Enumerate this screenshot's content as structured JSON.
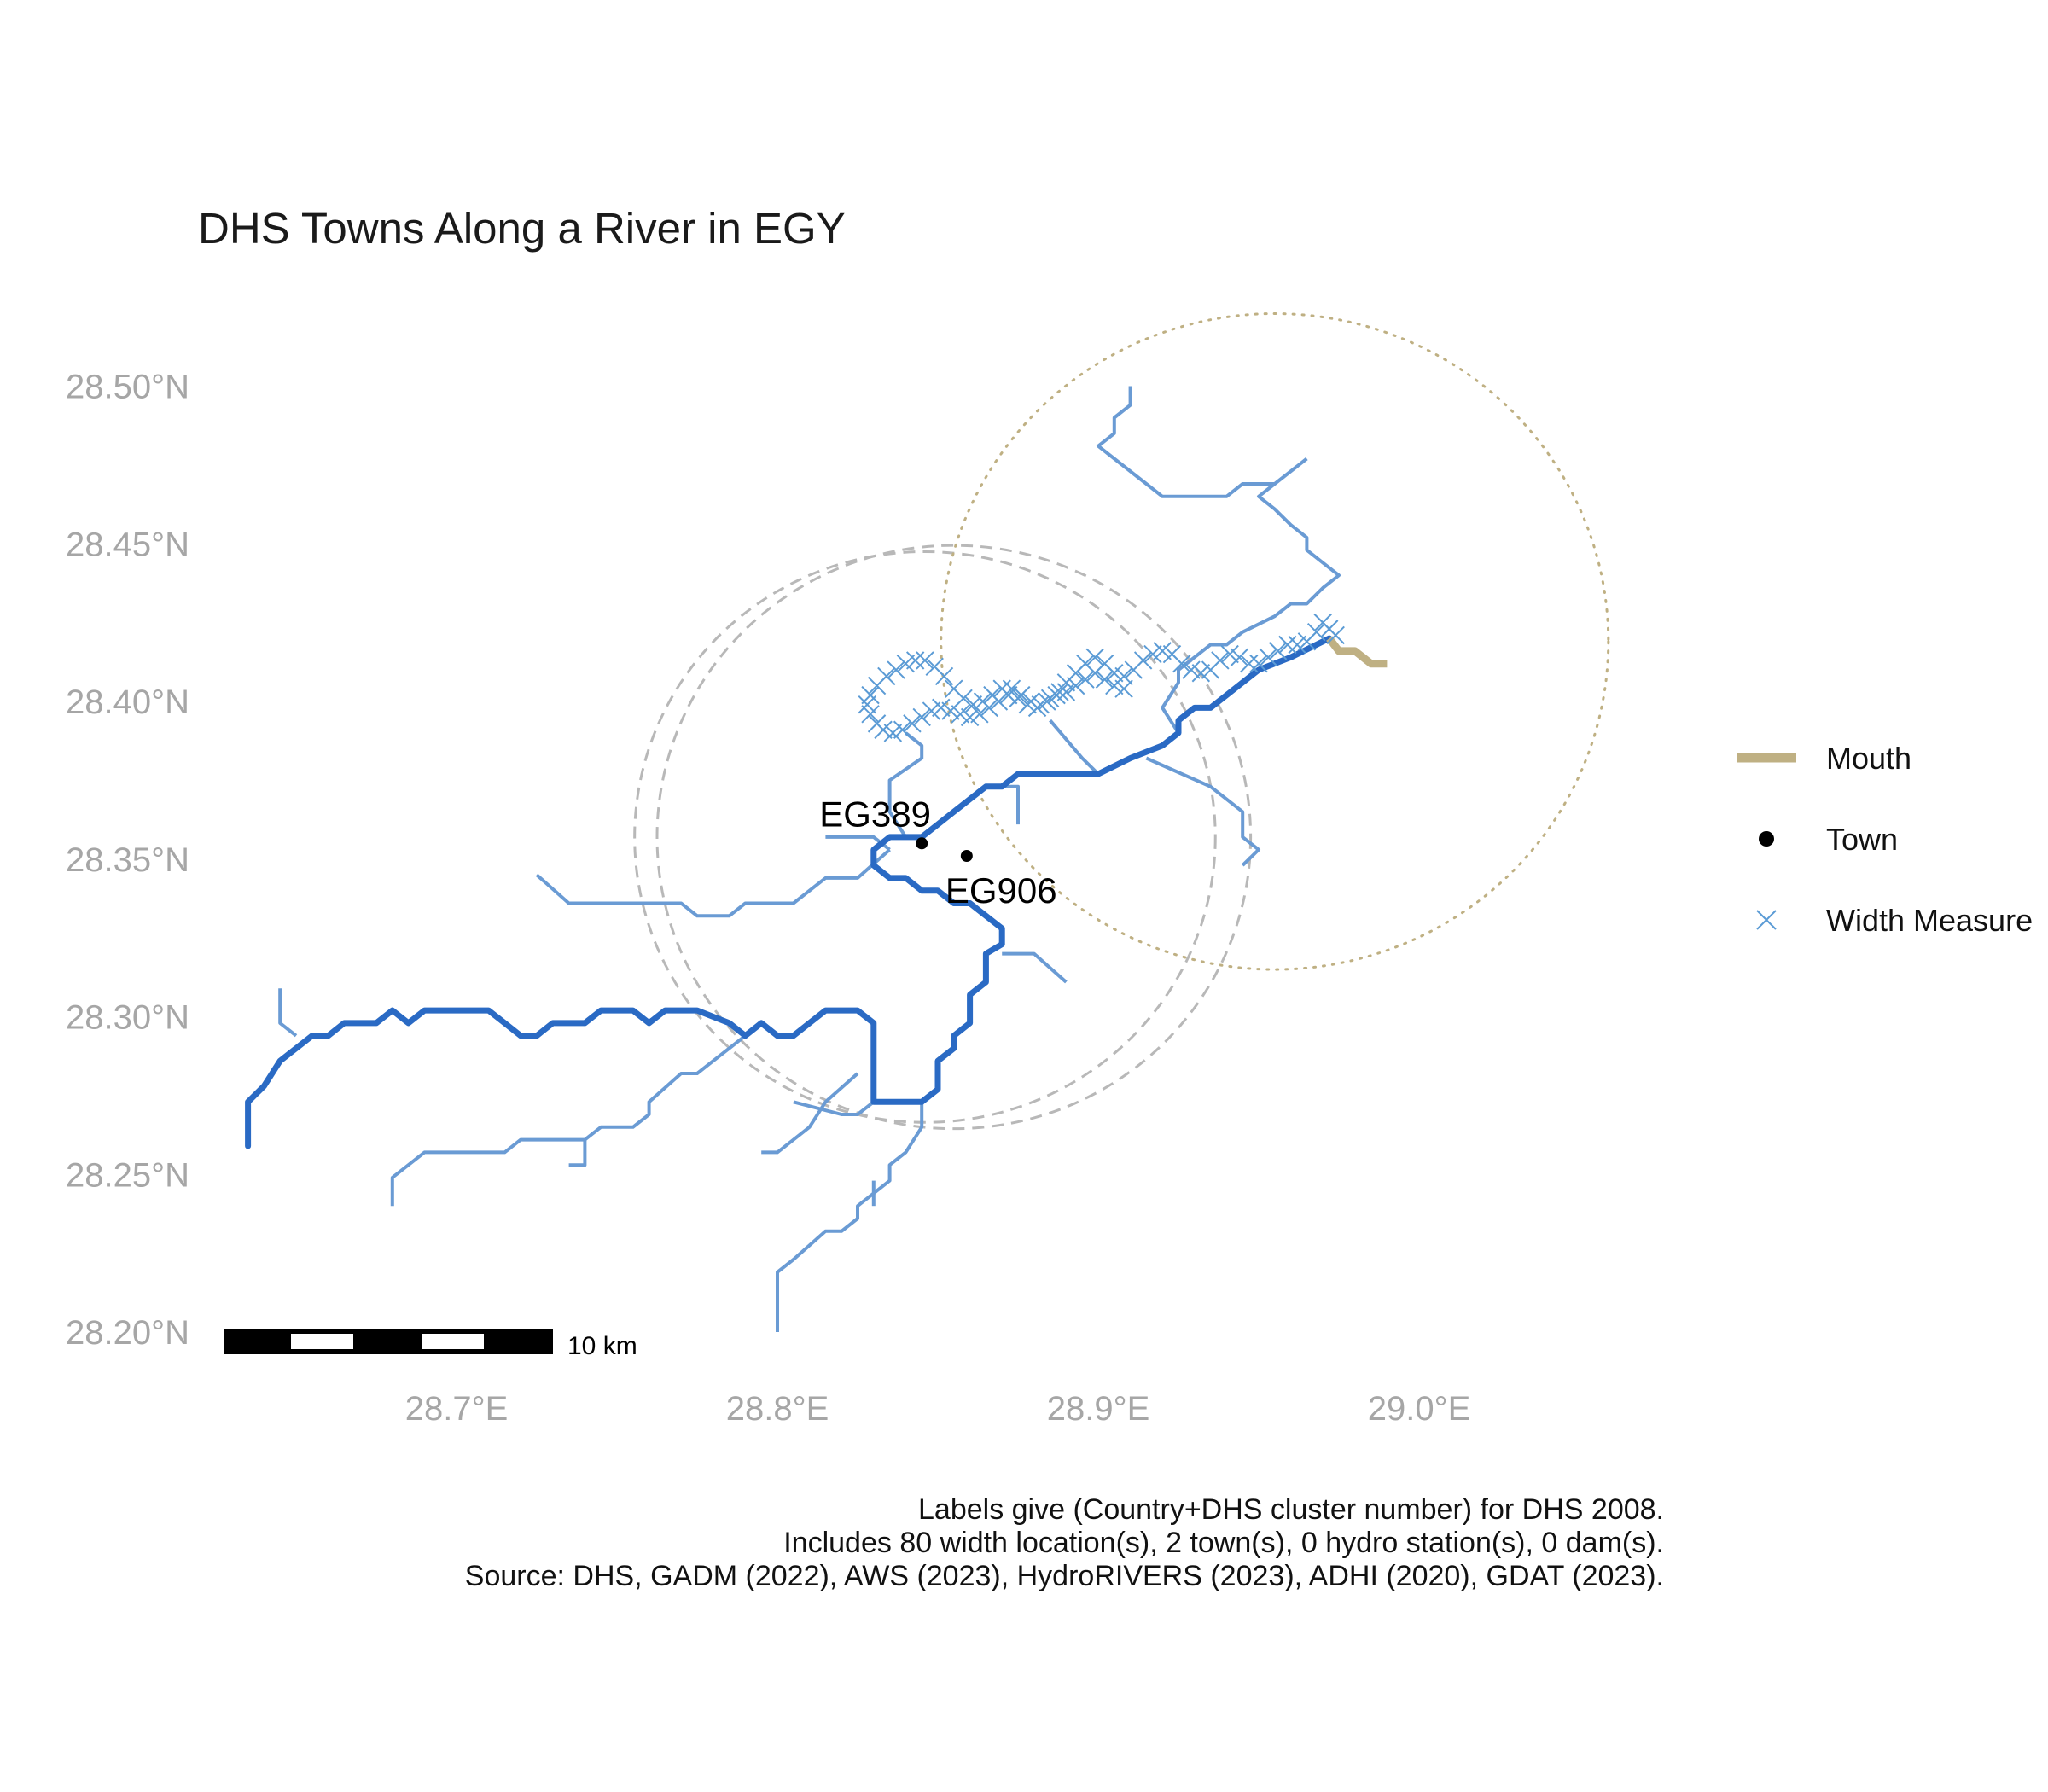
{
  "title": "DHS Towns Along a River in EGY",
  "chart_data": {
    "type": "map",
    "x_ticks": [
      {
        "value": 28.7,
        "label": "28.7°E"
      },
      {
        "value": 28.8,
        "label": "28.8°E"
      },
      {
        "value": 28.9,
        "label": "28.9°E"
      },
      {
        "value": 29.0,
        "label": "29.0°E"
      }
    ],
    "y_ticks": [
      {
        "value": 28.2,
        "label": "28.20°N"
      },
      {
        "value": 28.25,
        "label": "28.25°N"
      },
      {
        "value": 28.3,
        "label": "28.30°N"
      },
      {
        "value": 28.35,
        "label": "28.35°N"
      },
      {
        "value": 28.4,
        "label": "28.40°N"
      },
      {
        "value": 28.45,
        "label": "28.45°N"
      },
      {
        "value": 28.5,
        "label": "28.50°N"
      }
    ],
    "towns": [
      {
        "label": "EG389",
        "lon": 28.845,
        "lat": 28.355
      },
      {
        "label": "EG906",
        "lon": 28.859,
        "lat": 28.351
      }
    ],
    "buffers": [
      {
        "type": "dashed",
        "lon": 28.855,
        "lat": 28.357,
        "radius_deg": 0.0925
      },
      {
        "type": "dashed",
        "lon": 28.846,
        "lat": 28.357,
        "radius_deg": 0.0905
      },
      {
        "type": "dotted",
        "lon": 28.955,
        "lat": 28.419,
        "radius_deg": 0.104
      }
    ],
    "main_river": [
      [
        28.635,
        28.259
      ],
      [
        28.635,
        28.273
      ],
      [
        28.64,
        28.278
      ],
      [
        28.645,
        28.286
      ],
      [
        28.65,
        28.29
      ],
      [
        28.655,
        28.294
      ],
      [
        28.66,
        28.294
      ],
      [
        28.665,
        28.298
      ],
      [
        28.675,
        28.298
      ],
      [
        28.68,
        28.302
      ],
      [
        28.685,
        28.298
      ],
      [
        28.69,
        28.302
      ],
      [
        28.7,
        28.302
      ],
      [
        28.71,
        28.302
      ],
      [
        28.715,
        28.298
      ],
      [
        28.72,
        28.294
      ],
      [
        28.725,
        28.294
      ],
      [
        28.73,
        28.298
      ],
      [
        28.74,
        28.298
      ],
      [
        28.745,
        28.302
      ],
      [
        28.755,
        28.302
      ],
      [
        28.76,
        28.298
      ],
      [
        28.765,
        28.302
      ],
      [
        28.775,
        28.302
      ],
      [
        28.785,
        28.298
      ],
      [
        28.79,
        28.294
      ],
      [
        28.795,
        28.298
      ],
      [
        28.8,
        28.294
      ],
      [
        28.805,
        28.294
      ],
      [
        28.81,
        28.298
      ],
      [
        28.815,
        28.302
      ],
      [
        28.82,
        28.302
      ],
      [
        28.825,
        28.302
      ],
      [
        28.83,
        28.298
      ],
      [
        28.83,
        28.286
      ],
      [
        28.83,
        28.273
      ],
      [
        28.845,
        28.273
      ],
      [
        28.85,
        28.277
      ],
      [
        28.85,
        28.286
      ],
      [
        28.855,
        28.29
      ],
      [
        28.855,
        28.294
      ],
      [
        28.86,
        28.298
      ],
      [
        28.86,
        28.307
      ],
      [
        28.865,
        28.311
      ],
      [
        28.865,
        28.32
      ],
      [
        28.87,
        28.323
      ],
      [
        28.87,
        28.328
      ],
      [
        28.865,
        28.332
      ],
      [
        28.86,
        28.336
      ],
      [
        28.855,
        28.336
      ],
      [
        28.85,
        28.34
      ],
      [
        28.845,
        28.34
      ],
      [
        28.84,
        28.344
      ],
      [
        28.835,
        28.344
      ],
      [
        28.83,
        28.348
      ],
      [
        28.83,
        28.353
      ],
      [
        28.835,
        28.357
      ],
      [
        28.845,
        28.357
      ],
      [
        28.85,
        28.361
      ],
      [
        28.855,
        28.365
      ],
      [
        28.86,
        28.369
      ],
      [
        28.865,
        28.373
      ],
      [
        28.87,
        28.373
      ],
      [
        28.875,
        28.377
      ],
      [
        28.9,
        28.377
      ],
      [
        28.91,
        28.382
      ],
      [
        28.92,
        28.386
      ],
      [
        28.925,
        28.39
      ],
      [
        28.925,
        28.394
      ],
      [
        28.93,
        28.398
      ],
      [
        28.935,
        28.398
      ],
      [
        28.94,
        28.402
      ],
      [
        28.945,
        28.406
      ],
      [
        28.95,
        28.41
      ],
      [
        28.96,
        28.414
      ],
      [
        28.972,
        28.42
      ]
    ],
    "mouth_segment": [
      [
        28.972,
        28.42
      ],
      [
        28.975,
        28.416
      ],
      [
        28.98,
        28.416
      ],
      [
        28.985,
        28.412
      ],
      [
        28.99,
        28.412
      ]
    ],
    "tributaries": [
      [
        [
          28.725,
          28.345
        ],
        [
          28.735,
          28.336
        ],
        [
          28.77,
          28.336
        ],
        [
          28.775,
          28.332
        ],
        [
          28.785,
          28.332
        ],
        [
          28.79,
          28.336
        ],
        [
          28.805,
          28.336
        ],
        [
          28.815,
          28.344
        ],
        [
          28.825,
          28.344
        ],
        [
          28.835,
          28.353
        ]
      ],
      [
        [
          28.835,
          28.353
        ],
        [
          28.83,
          28.357
        ],
        [
          28.815,
          28.357
        ]
      ],
      [
        [
          28.84,
          28.357
        ],
        [
          28.835,
          28.365
        ],
        [
          28.835,
          28.375
        ],
        [
          28.845,
          28.382
        ],
        [
          28.845,
          28.386
        ],
        [
          28.84,
          28.39
        ]
      ],
      [
        [
          28.645,
          28.309
        ],
        [
          28.645,
          28.298
        ],
        [
          28.65,
          28.294
        ]
      ],
      [
        [
          28.68,
          28.24
        ],
        [
          28.68,
          28.249
        ],
        [
          28.69,
          28.257
        ],
        [
          28.715,
          28.257
        ],
        [
          28.72,
          28.261
        ],
        [
          28.74,
          28.261
        ],
        [
          28.745,
          28.265
        ],
        [
          28.755,
          28.265
        ],
        [
          28.76,
          28.269
        ],
        [
          28.76,
          28.273
        ],
        [
          28.77,
          28.282
        ],
        [
          28.775,
          28.282
        ],
        [
          28.78,
          28.286
        ],
        [
          28.785,
          28.29
        ],
        [
          28.79,
          28.294
        ]
      ],
      [
        [
          28.74,
          28.261
        ],
        [
          28.74,
          28.253
        ],
        [
          28.735,
          28.253
        ]
      ],
      [
        [
          28.805,
          28.273
        ],
        [
          28.82,
          28.269
        ],
        [
          28.825,
          28.269
        ],
        [
          28.83,
          28.273
        ]
      ],
      [
        [
          28.795,
          28.257
        ],
        [
          28.8,
          28.257
        ],
        [
          28.81,
          28.265
        ],
        [
          28.815,
          28.273
        ],
        [
          28.825,
          28.282
        ]
      ],
      [
        [
          28.8,
          28.2
        ],
        [
          28.8,
          28.219
        ],
        [
          28.805,
          28.223
        ],
        [
          28.815,
          28.232
        ],
        [
          28.82,
          28.232
        ],
        [
          28.825,
          28.236
        ],
        [
          28.825,
          28.24
        ],
        [
          28.83,
          28.244
        ],
        [
          28.835,
          28.248
        ],
        [
          28.835,
          28.253
        ],
        [
          28.84,
          28.257
        ],
        [
          28.845,
          28.265
        ],
        [
          28.845,
          28.273
        ]
      ],
      [
        [
          28.83,
          28.248
        ],
        [
          28.83,
          28.24
        ]
      ],
      [
        [
          28.87,
          28.32
        ],
        [
          28.88,
          28.32
        ],
        [
          28.89,
          28.311
        ]
      ],
      [
        [
          28.86,
          28.369
        ],
        [
          28.865,
          28.373
        ],
        [
          28.875,
          28.373
        ],
        [
          28.875,
          28.361
        ]
      ],
      [
        [
          28.925,
          28.39
        ],
        [
          28.92,
          28.398
        ],
        [
          28.925,
          28.406
        ],
        [
          28.925,
          28.41
        ],
        [
          28.935,
          28.418
        ],
        [
          28.94,
          28.418
        ],
        [
          28.945,
          28.422
        ],
        [
          28.955,
          28.427
        ],
        [
          28.96,
          28.431
        ],
        [
          28.965,
          28.431
        ],
        [
          28.97,
          28.436
        ],
        [
          28.975,
          28.44
        ],
        [
          28.97,
          28.444
        ],
        [
          28.965,
          28.448
        ],
        [
          28.965,
          28.452
        ],
        [
          28.96,
          28.456
        ],
        [
          28.955,
          28.461
        ],
        [
          28.95,
          28.465
        ],
        [
          28.955,
          28.469
        ],
        [
          28.945,
          28.469
        ],
        [
          28.94,
          28.465
        ],
        [
          28.92,
          28.465
        ],
        [
          28.915,
          28.469
        ],
        [
          28.905,
          28.477
        ],
        [
          28.9,
          28.481
        ],
        [
          28.905,
          28.485
        ],
        [
          28.905,
          28.49
        ],
        [
          28.91,
          28.494
        ],
        [
          28.91,
          28.5
        ]
      ],
      [
        [
          28.955,
          28.469
        ],
        [
          28.965,
          28.477
        ]
      ],
      [
        [
          28.915,
          28.382
        ],
        [
          28.935,
          28.373
        ],
        [
          28.945,
          28.365
        ],
        [
          28.945,
          28.357
        ],
        [
          28.95,
          28.353
        ],
        [
          28.945,
          28.348
        ]
      ],
      [
        [
          28.9,
          28.377
        ],
        [
          28.895,
          28.382
        ],
        [
          28.885,
          28.394
        ]
      ]
    ],
    "width_measures": [
      [
        28.89,
        28.406
      ],
      [
        28.893,
        28.409
      ],
      [
        28.896,
        28.412
      ],
      [
        28.899,
        28.414
      ],
      [
        28.902,
        28.412
      ],
      [
        28.905,
        28.409
      ],
      [
        28.908,
        28.408
      ],
      [
        28.911,
        28.41
      ],
      [
        28.914,
        28.413
      ],
      [
        28.917,
        28.415
      ],
      [
        28.92,
        28.416
      ],
      [
        28.923,
        28.415
      ],
      [
        28.926,
        28.412
      ],
      [
        28.929,
        28.41
      ],
      [
        28.932,
        28.409
      ],
      [
        28.935,
        28.41
      ],
      [
        28.938,
        28.413
      ],
      [
        28.941,
        28.415
      ],
      [
        28.944,
        28.414
      ],
      [
        28.947,
        28.412
      ],
      [
        28.95,
        28.412
      ],
      [
        28.953,
        28.414
      ],
      [
        28.956,
        28.416
      ],
      [
        28.959,
        28.418
      ],
      [
        28.962,
        28.418
      ],
      [
        28.965,
        28.419
      ],
      [
        28.968,
        28.422
      ],
      [
        28.97,
        28.425
      ],
      [
        28.972,
        28.423
      ],
      [
        28.974,
        28.421
      ],
      [
        28.888,
        28.403
      ],
      [
        28.885,
        28.401
      ],
      [
        28.882,
        28.399
      ],
      [
        28.879,
        28.4
      ],
      [
        28.876,
        28.402
      ],
      [
        28.873,
        28.404
      ],
      [
        28.87,
        28.404
      ],
      [
        28.867,
        28.402
      ],
      [
        28.864,
        28.4
      ],
      [
        28.861,
        28.399
      ],
      [
        28.858,
        28.401
      ],
      [
        28.855,
        28.404
      ],
      [
        28.852,
        28.408
      ],
      [
        28.849,
        28.411
      ],
      [
        28.846,
        28.413
      ],
      [
        28.843,
        28.413
      ],
      [
        28.84,
        28.412
      ],
      [
        28.837,
        28.41
      ],
      [
        28.834,
        28.408
      ],
      [
        28.831,
        28.405
      ],
      [
        28.829,
        28.402
      ],
      [
        28.828,
        28.399
      ],
      [
        28.829,
        28.396
      ],
      [
        28.831,
        28.393
      ],
      [
        28.833,
        28.391
      ],
      [
        28.836,
        28.39
      ],
      [
        28.839,
        28.391
      ],
      [
        28.842,
        28.393
      ],
      [
        28.845,
        28.395
      ],
      [
        28.848,
        28.397
      ],
      [
        28.851,
        28.398
      ],
      [
        28.854,
        28.397
      ],
      [
        28.857,
        28.396
      ],
      [
        28.86,
        28.395
      ],
      [
        28.863,
        28.396
      ],
      [
        28.866,
        28.398
      ],
      [
        28.869,
        28.4
      ],
      [
        28.872,
        28.402
      ],
      [
        28.875,
        28.401
      ],
      [
        28.878,
        28.399
      ],
      [
        28.881,
        28.398
      ],
      [
        28.884,
        28.4
      ],
      [
        28.887,
        28.402
      ],
      [
        28.89,
        28.403
      ],
      [
        28.893,
        28.405
      ],
      [
        28.896,
        28.407
      ],
      [
        28.899,
        28.409
      ],
      [
        28.902,
        28.407
      ],
      [
        28.905,
        28.405
      ],
      [
        28.908,
        28.404
      ]
    ]
  },
  "legend": {
    "mouth": {
      "label": "Mouth",
      "color": "#bfb083"
    },
    "town": {
      "label": "Town",
      "color": "#000000"
    },
    "width": {
      "label": "Width Measure",
      "color": "#5b9bd5"
    }
  },
  "colors": {
    "main_river": "#2a6ac4",
    "tributary": "#6a9bd4",
    "buffer": "#b8b8b8",
    "mouth_buffer": "#bfb083"
  },
  "scale_bar": {
    "label": "10 km"
  },
  "caption": [
    "Labels give (Country+DHS cluster number) for DHS 2008.",
    "Includes 80 width location(s), 2 town(s), 0 hydro station(s), 0 dam(s).",
    "Source: DHS, GADM (2022), AWS (2023), HydroRIVERS (2023), ADHI (2020), GDAT (2023)."
  ]
}
